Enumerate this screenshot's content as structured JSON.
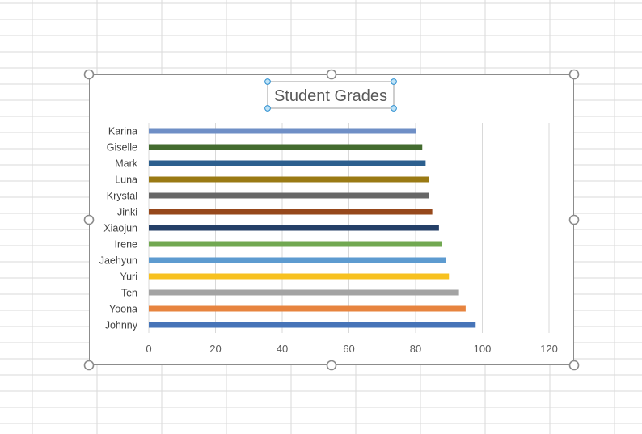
{
  "chart_data": {
    "type": "bar",
    "orientation": "horizontal",
    "title": "Student Grades",
    "categories": [
      "Karina",
      "Giselle",
      "Mark",
      "Luna",
      "Krystal",
      "Jinki",
      "Xiaojun",
      "Irene",
      "Jaehyun",
      "Yuri",
      "Ten",
      "Yoona",
      "Johnny"
    ],
    "values": [
      80,
      82,
      83,
      84,
      84,
      85,
      87,
      88,
      89,
      90,
      93,
      95,
      98
    ],
    "colors": [
      "#6f8fc6",
      "#436b2f",
      "#2c5f8e",
      "#9a7a14",
      "#676767",
      "#96481b",
      "#243f67",
      "#71a851",
      "#5d9bd0",
      "#f7c11f",
      "#a3a3a3",
      "#e7843f",
      "#4674b8"
    ],
    "xticks": [
      0,
      20,
      40,
      60,
      80,
      100,
      120
    ],
    "xlim": [
      0,
      120
    ],
    "grid": "vertical",
    "legend": "none"
  }
}
